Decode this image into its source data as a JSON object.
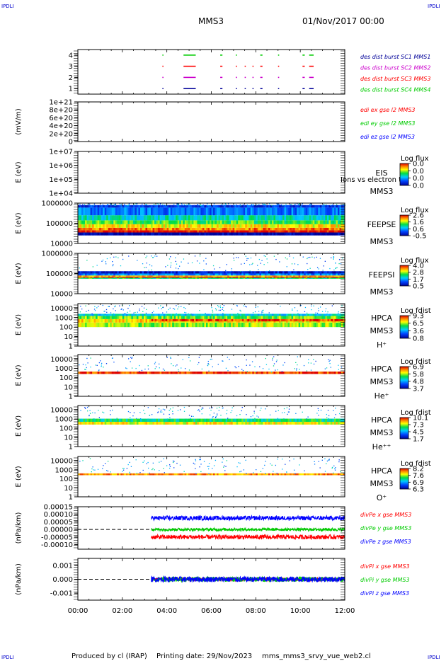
{
  "header": {
    "corner_tl": "IPDLI",
    "corner_tr": "IPDLI",
    "corner_bl": "IPDLI",
    "corner_br": "IPDLI",
    "spacecraft": "MMS3",
    "date": "01/Nov/2017 00:00"
  },
  "footer": {
    "produced_by": "Produced by cl (IRAP)",
    "printing_date": "Printing date: 29/Nov/2023",
    "script_name": "mms_mms3_srvy_vue_web2.cl"
  },
  "colors": {
    "frame": "#000000",
    "red": "#ff0000",
    "green": "#00cc00",
    "blue": "#0000ff",
    "magenta": "#cc00cc",
    "navy": "#000099",
    "yellow": "#ffff00",
    "cyan": "#00ccff"
  },
  "time_axis": {
    "start_hours": 0,
    "end_hours": 12,
    "tick_labels": [
      "00:00",
      "02:00",
      "04:00",
      "06:00",
      "08:00",
      "10:00",
      "12:00"
    ],
    "tick_hours": [
      0,
      2,
      4,
      6,
      8,
      10,
      12
    ]
  },
  "chart_data": [
    {
      "type": "scatter",
      "panel": "burst",
      "ylabel": "",
      "ylim": [
        0.5,
        4.5
      ],
      "yticks": [
        "4",
        "3",
        "2",
        "1"
      ],
      "ytick_values": [
        4,
        3,
        2,
        1
      ],
      "legend": [
        {
          "label": "des dist burst SC1 MMS1",
          "color": "#000099"
        },
        {
          "label": "des dist burst SC2 MMS2",
          "color": "#cc00cc"
        },
        {
          "label": "des dist burst SC3 MMS3",
          "color": "#ff0000"
        },
        {
          "label": "des dist burst SC4 MMS4",
          "color": "#00cc00"
        }
      ],
      "series": [
        {
          "name": "des dist burst SC4 MMS4",
          "y": 4,
          "color": "#00cc00",
          "intervals": [
            [
              3.8,
              3.82
            ],
            [
              4.75,
              5.3
            ],
            [
              6.4,
              6.5
            ],
            [
              7.1,
              7.15
            ],
            [
              8.2,
              8.3
            ],
            [
              9.0,
              9.05
            ],
            [
              10.1,
              10.2
            ],
            [
              10.4,
              10.6
            ]
          ]
        },
        {
          "name": "des dist burst SC3 MMS3",
          "y": 3,
          "color": "#ff0000",
          "intervals": [
            [
              3.8,
              3.82
            ],
            [
              4.75,
              5.3
            ],
            [
              6.4,
              6.5
            ],
            [
              7.1,
              7.15
            ],
            [
              7.5,
              7.55
            ],
            [
              7.85,
              7.9
            ],
            [
              8.2,
              8.3
            ],
            [
              9.0,
              9.05
            ],
            [
              10.1,
              10.2
            ],
            [
              10.4,
              10.6
            ]
          ]
        },
        {
          "name": "des dist burst SC2 MMS2",
          "y": 2,
          "color": "#cc00cc",
          "intervals": [
            [
              3.8,
              3.82
            ],
            [
              4.75,
              5.3
            ],
            [
              6.4,
              6.5
            ],
            [
              7.1,
              7.15
            ],
            [
              7.5,
              7.55
            ],
            [
              7.85,
              7.9
            ],
            [
              8.2,
              8.3
            ],
            [
              9.0,
              9.05
            ],
            [
              10.1,
              10.2
            ],
            [
              10.4,
              10.6
            ]
          ]
        },
        {
          "name": "des dist burst SC1 MMS1",
          "y": 1,
          "color": "#000099",
          "intervals": [
            [
              3.8,
              3.82
            ],
            [
              4.75,
              5.3
            ],
            [
              6.4,
              6.5
            ],
            [
              7.1,
              7.15
            ],
            [
              7.5,
              7.55
            ],
            [
              7.85,
              7.9
            ],
            [
              8.2,
              8.3
            ],
            [
              9.0,
              9.05
            ],
            [
              10.1,
              10.2
            ],
            [
              10.4,
              10.6
            ]
          ]
        }
      ]
    },
    {
      "type": "line",
      "panel": "edi",
      "ylabel": "(mV/m)",
      "ylim": [
        0,
        1e+21
      ],
      "yticks": [
        "1e+21",
        "8e+20",
        "6e+20",
        "4e+20",
        "2e+20",
        "0"
      ],
      "ytick_values": [
        1e+21,
        8e+20,
        6e+20,
        4e+20,
        2e+20,
        0
      ],
      "legend": [
        {
          "label": "edi ex gse l2 MMS3",
          "color": "#ff0000"
        },
        {
          "label": "edi ey gse l2 MMS3",
          "color": "#00cc00"
        },
        {
          "label": "edi ez gse l2 MMS3",
          "color": "#0000ff"
        }
      ]
    },
    {
      "type": "heatmap",
      "panel": "eis",
      "ylabel": "E (eV)",
      "yticks": [
        "1e+07",
        "1e+06",
        "1e+05",
        "1e+04"
      ],
      "ytick_values": [
        10000000,
        1000000,
        100000,
        10000
      ],
      "ylim": [
        10000,
        10000000
      ],
      "scale": "log",
      "instrument": [
        "EIS",
        "MMS3"
      ],
      "overlap_text": "Ions vs electron to",
      "colorbar": {
        "title": "Log flux",
        "ticks": [
          "0.0",
          "0.0",
          "0.0",
          "0.0"
        ]
      },
      "cells": []
    },
    {
      "type": "heatmap",
      "panel": "feepse",
      "ylabel": "E (eV)",
      "yticks": [
        "1000000",
        "100000",
        "10000"
      ],
      "ytick_values": [
        1000000,
        100000,
        10000
      ],
      "ylim": [
        10000,
        1000000
      ],
      "scale": "log",
      "instrument": [
        "FEEPSE",
        "MMS3"
      ],
      "colorbar": {
        "title": "Log flux",
        "ticks": [
          "2.6",
          "1.6",
          "0.6",
          "-0.5"
        ]
      },
      "start_hours": 0,
      "bands": [
        {
          "e_low": 25000,
          "e_high": 35000,
          "level": -0.5
        },
        {
          "e_low": 35000,
          "e_high": 45000,
          "level": 2.6
        },
        {
          "e_low": 45000,
          "e_high": 60000,
          "level": 2.2
        },
        {
          "e_low": 60000,
          "e_high": 90000,
          "level": 1.8
        },
        {
          "e_low": 90000,
          "e_high": 140000,
          "level": 1.3
        },
        {
          "e_low": 140000,
          "e_high": 250000,
          "level": 0.9
        },
        {
          "e_low": 250000,
          "e_high": 600000,
          "level": 0.3
        },
        {
          "e_low": 600000,
          "e_high": 800000,
          "level": 0.0
        }
      ]
    },
    {
      "type": "heatmap",
      "panel": "feepsi",
      "ylabel": "E (eV)",
      "yticks": [
        "1000000",
        "100000",
        "10000"
      ],
      "ytick_values": [
        1000000,
        100000,
        10000
      ],
      "ylim": [
        10000,
        1000000
      ],
      "scale": "log",
      "instrument": [
        "FEEPSI",
        "MMS3"
      ],
      "colorbar": {
        "title": "Log flux",
        "ticks": [
          "4.0",
          "2.8",
          "1.7",
          "0.5"
        ]
      },
      "start_hours": 0,
      "bands": [
        {
          "e_low": 55000,
          "e_high": 62000,
          "level": 2.4
        },
        {
          "e_low": 62000,
          "e_high": 70000,
          "level": 3.9
        },
        {
          "e_low": 70000,
          "e_high": 80000,
          "level": 3.3
        },
        {
          "e_low": 80000,
          "e_high": 100000,
          "level": 1.5
        },
        {
          "e_low": 100000,
          "e_high": 130000,
          "level": 0.8
        }
      ]
    },
    {
      "type": "heatmap",
      "panel": "hpca_h",
      "ylabel": "E (eV)",
      "yticks": [
        "10000",
        "1000",
        "100",
        "10",
        "1"
      ],
      "ytick_values": [
        10000,
        1000,
        100,
        10,
        1
      ],
      "ylim": [
        1,
        30000
      ],
      "scale": "log",
      "instrument": [
        "HPCA",
        "MMS3",
        "H⁺"
      ],
      "colorbar": {
        "title": "Log fdist",
        "ticks": [
          "9.3",
          "6.5",
          "3.6",
          "0.8"
        ]
      },
      "start_hours": 0,
      "bands": [
        {
          "e_low": 100,
          "e_high": 300,
          "level": 6.4
        },
        {
          "e_low": 300,
          "e_high": 700,
          "level": 7.2
        },
        {
          "e_low": 700,
          "e_high": 1500,
          "level": 6.0
        },
        {
          "e_low": 1500,
          "e_high": 2500,
          "level": 4.2
        }
      ],
      "late_bands": {
        "start_hours": 3.3,
        "bands": [
          {
            "e_low": 400,
            "e_high": 700,
            "level": 8.6
          }
        ]
      }
    },
    {
      "type": "heatmap",
      "panel": "hpca_he",
      "ylabel": "E (eV)",
      "yticks": [
        "10000",
        "1000",
        "100",
        "10",
        "1"
      ],
      "ytick_values": [
        10000,
        1000,
        100,
        10,
        1
      ],
      "ylim": [
        1,
        30000
      ],
      "scale": "log",
      "instrument": [
        "HPCA",
        "MMS3",
        "He⁺"
      ],
      "colorbar": {
        "title": "Log fdist",
        "ticks": [
          "6.9",
          "5.8",
          "4.8",
          "3.7"
        ]
      },
      "start_hours": 0,
      "bands": [
        {
          "e_low": 250,
          "e_high": 450,
          "level": 6.7
        }
      ]
    },
    {
      "type": "heatmap",
      "panel": "hpca_hepp",
      "ylabel": "E (eV)",
      "yticks": [
        "10000",
        "1000",
        "100",
        "10",
        "1"
      ],
      "ytick_values": [
        10000,
        1000,
        100,
        10,
        1
      ],
      "ylim": [
        1,
        30000
      ],
      "scale": "log",
      "instrument": [
        "HPCA",
        "MMS3",
        "He⁺⁺"
      ],
      "colorbar": {
        "title": "Log fdist",
        "ticks": [
          "10.1",
          "7.3",
          "4.5",
          "1.7"
        ]
      },
      "start_hours": 0,
      "bands": [
        {
          "e_low": 250,
          "e_high": 500,
          "level": 7.8
        },
        {
          "e_low": 500,
          "e_high": 1100,
          "level": 6.0
        }
      ]
    },
    {
      "type": "heatmap",
      "panel": "hpca_o",
      "ylabel": "E (eV)",
      "yticks": [
        "10000",
        "1000",
        "100",
        "10",
        "1"
      ],
      "ytick_values": [
        10000,
        1000,
        100,
        10,
        1
      ],
      "ylim": [
        1,
        30000
      ],
      "scale": "log",
      "instrument": [
        "HPCA",
        "MMS3",
        "O⁺"
      ],
      "colorbar": {
        "title": "Log fdist",
        "ticks": [
          "8.2",
          "7.6",
          "6.9",
          "6.3"
        ]
      },
      "start_hours": 0,
      "bands": [
        {
          "e_low": 250,
          "e_high": 400,
          "level": 7.9
        }
      ]
    },
    {
      "type": "line",
      "panel": "divpe",
      "ylabel": "(nPa/km)",
      "yticks": [
        "0.00015",
        "0.00010",
        "0.00005",
        "0.00000",
        "-0.00005",
        "-0.00010"
      ],
      "ytick_values": [
        0.00015,
        0.0001,
        5e-05,
        0,
        -5e-05,
        -0.0001
      ],
      "ylim": [
        -0.00013,
        0.00015
      ],
      "legend": [
        {
          "label": "divPe x gse MMS3",
          "color": "#ff0000"
        },
        {
          "label": "divPe y gse MMS3",
          "color": "#00cc00"
        },
        {
          "label": "divPe z gse MMS3",
          "color": "#0000ff"
        }
      ],
      "data_start_hours": 3.3,
      "series": [
        {
          "name": "divPe z gse MMS3",
          "color": "#0000ff",
          "mean": 7.5e-05,
          "spread": 1.5e-05
        },
        {
          "name": "divPe y gse MMS3",
          "color": "#00cc00",
          "mean": 0.0,
          "spread": 1e-05
        },
        {
          "name": "divPe x gse MMS3",
          "color": "#ff0000",
          "mean": -5e-05,
          "spread": 1.5e-05
        }
      ]
    },
    {
      "type": "line",
      "panel": "divpi",
      "ylabel": "(nPa/km)",
      "yticks": [
        "0.001",
        "0.000",
        "-0.001"
      ],
      "ytick_values": [
        0.001,
        0,
        -0.001
      ],
      "ylim": [
        -0.0015,
        0.0015
      ],
      "legend": [
        {
          "label": "divPi x gse MMS3",
          "color": "#ff0000"
        },
        {
          "label": "divPi y gse MMS3",
          "color": "#00cc00"
        },
        {
          "label": "divPi z gse MMS3",
          "color": "#0000ff"
        }
      ],
      "data_start_hours": 3.3,
      "series": [
        {
          "name": "divPi x gse MMS3",
          "color": "#ff0000",
          "mean": 0.0,
          "spread": 0.00012
        },
        {
          "name": "divPi y gse MMS3",
          "color": "#00cc00",
          "mean": 0.0,
          "spread": 0.00018
        },
        {
          "name": "divPi z gse MMS3",
          "color": "#0000ff",
          "mean": 0.0,
          "spread": 0.0002
        }
      ]
    }
  ]
}
